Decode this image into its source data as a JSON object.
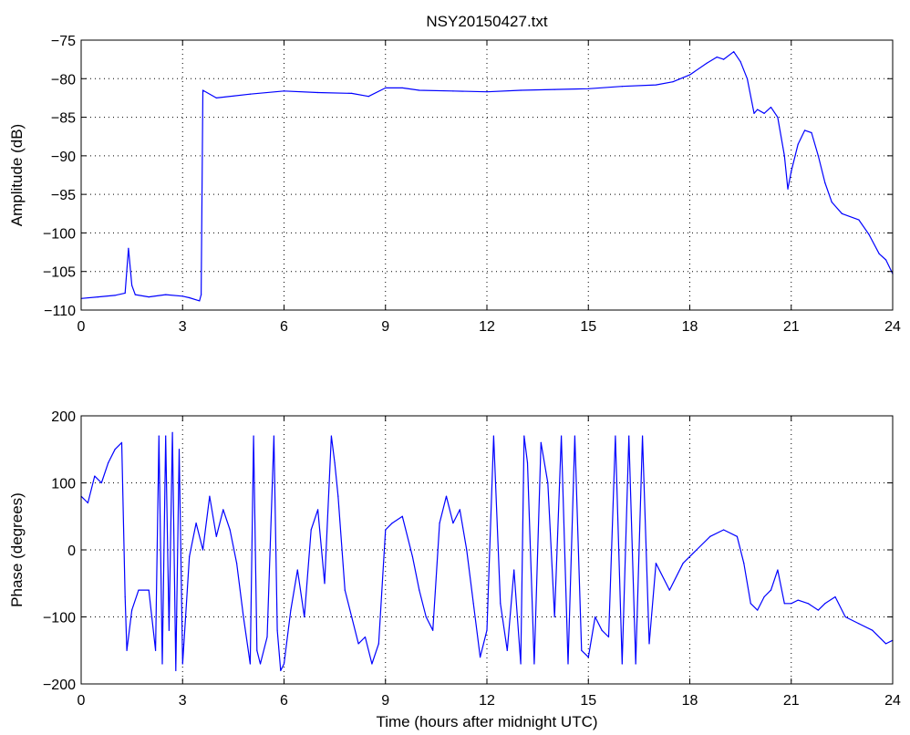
{
  "chart_data": [
    {
      "type": "line",
      "title": "NSY20150427.txt",
      "xlabel": "",
      "ylabel": "Amplitude (dB)",
      "xlim": [
        0,
        24
      ],
      "ylim": [
        -110,
        -75
      ],
      "x_ticks": [
        0,
        3,
        6,
        9,
        12,
        15,
        18,
        21,
        24
      ],
      "y_ticks": [
        -110,
        -105,
        -100,
        -95,
        -90,
        -85,
        -80,
        -75
      ],
      "grid": true,
      "line_color": "#0000ff",
      "series": [
        {
          "x": [
            0,
            0.5,
            1.0,
            1.3,
            1.4,
            1.5,
            1.6,
            2.0,
            2.5,
            3.0,
            3.2,
            3.5,
            3.55,
            3.6,
            4.0,
            5.0,
            6.0,
            7.0,
            8.0,
            8.5,
            9.0,
            9.5,
            10.0,
            11.0,
            12.0,
            13.0,
            14.0,
            15.0,
            16.0,
            17.0,
            17.5,
            18.0,
            18.5,
            18.8,
            19.0,
            19.3,
            19.5,
            19.7,
            19.9,
            20.0,
            20.2,
            20.4,
            20.6,
            20.8,
            20.9,
            21.0,
            21.2,
            21.4,
            21.6,
            21.8,
            22.0,
            22.2,
            22.5,
            23.0,
            23.3,
            23.6,
            23.8,
            24.0
          ],
          "values": [
            -108.5,
            -108.3,
            -108.1,
            -107.8,
            -102.0,
            -106.8,
            -108.0,
            -108.3,
            -108.0,
            -108.2,
            -108.4,
            -108.8,
            -108.0,
            -81.5,
            -82.5,
            -82.0,
            -81.6,
            -81.8,
            -81.9,
            -82.3,
            -81.2,
            -81.2,
            -81.5,
            -81.6,
            -81.7,
            -81.5,
            -81.4,
            -81.3,
            -81.0,
            -80.8,
            -80.4,
            -79.5,
            -78.0,
            -77.2,
            -77.5,
            -76.5,
            -77.8,
            -80.0,
            -84.5,
            -84.0,
            -84.5,
            -83.7,
            -85.0,
            -90.0,
            -94.3,
            -92.0,
            -88.5,
            -86.7,
            -87.0,
            -90.0,
            -93.5,
            -96.0,
            -97.5,
            -98.3,
            -100.2,
            -102.7,
            -103.5,
            -105.3
          ]
        }
      ]
    },
    {
      "type": "line",
      "title": "",
      "xlabel": "Time (hours after midnight UTC)",
      "ylabel": "Phase (degrees)",
      "xlim": [
        0,
        24
      ],
      "ylim": [
        -200,
        200
      ],
      "x_ticks": [
        0,
        3,
        6,
        9,
        12,
        15,
        18,
        21,
        24
      ],
      "y_ticks": [
        -200,
        -100,
        0,
        100,
        200
      ],
      "grid": true,
      "line_color": "#0000ff",
      "series": [
        {
          "x": [
            0,
            0.2,
            0.4,
            0.6,
            0.8,
            1.0,
            1.2,
            1.3,
            1.35,
            1.5,
            1.7,
            2.0,
            2.2,
            2.3,
            2.4,
            2.5,
            2.6,
            2.7,
            2.8,
            2.9,
            3.0,
            3.2,
            3.4,
            3.6,
            3.8,
            4.0,
            4.2,
            4.4,
            4.6,
            4.8,
            5.0,
            5.1,
            5.2,
            5.3,
            5.5,
            5.7,
            5.8,
            5.9,
            6.0,
            6.2,
            6.4,
            6.6,
            6.8,
            7.0,
            7.2,
            7.4,
            7.5,
            7.6,
            7.8,
            8.0,
            8.2,
            8.4,
            8.6,
            8.8,
            9.0,
            9.2,
            9.5,
            9.8,
            10.0,
            10.2,
            10.4,
            10.6,
            10.8,
            11.0,
            11.2,
            11.4,
            11.6,
            11.8,
            12.0,
            12.2,
            12.4,
            12.6,
            12.8,
            13.0,
            13.1,
            13.2,
            13.4,
            13.6,
            13.8,
            14.0,
            14.2,
            14.4,
            14.6,
            14.8,
            15.0,
            15.2,
            15.4,
            15.6,
            15.8,
            16.0,
            16.2,
            16.4,
            16.6,
            16.8,
            17.0,
            17.4,
            17.8,
            18.2,
            18.6,
            19.0,
            19.4,
            19.6,
            19.8,
            20.0,
            20.2,
            20.4,
            20.6,
            20.8,
            21.0,
            21.2,
            21.5,
            21.8,
            22.0,
            22.3,
            22.6,
            23.0,
            23.4,
            23.8,
            24.0
          ],
          "values": [
            80,
            70,
            110,
            100,
            130,
            150,
            160,
            -70,
            -150,
            -90,
            -60,
            -60,
            -150,
            170,
            -170,
            170,
            -120,
            175,
            -180,
            150,
            -170,
            -10,
            40,
            0,
            80,
            20,
            60,
            30,
            -20,
            -100,
            -170,
            170,
            -150,
            -170,
            -130,
            170,
            -120,
            -180,
            -170,
            -90,
            -30,
            -100,
            30,
            60,
            -50,
            170,
            130,
            80,
            -60,
            -100,
            -140,
            -130,
            -170,
            -140,
            30,
            40,
            50,
            -10,
            -60,
            -100,
            -120,
            40,
            80,
            40,
            60,
            0,
            -80,
            -160,
            -120,
            170,
            -80,
            -150,
            -30,
            -170,
            170,
            130,
            -170,
            160,
            100,
            -100,
            170,
            -170,
            170,
            -150,
            -160,
            -100,
            -120,
            -130,
            170,
            -170,
            170,
            -170,
            170,
            -140,
            -20,
            -60,
            -20,
            0,
            20,
            30,
            20,
            -20,
            -80,
            -90,
            -70,
            -60,
            -30,
            -80,
            -80,
            -75,
            -80,
            -90,
            -80,
            -70,
            -100,
            -110,
            -120,
            -140,
            -135
          ]
        }
      ]
    }
  ]
}
